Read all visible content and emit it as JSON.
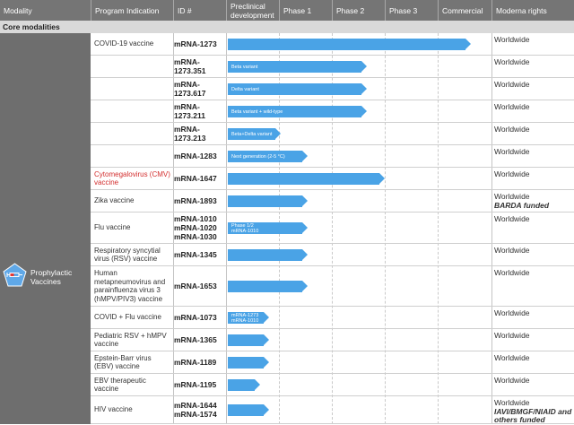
{
  "header": {
    "modality": "Modality",
    "program": "Program Indication",
    "id": "ID #",
    "preclinical": "Preclinical development",
    "phase1": "Phase 1",
    "phase2": "Phase 2",
    "phase3": "Phase 3",
    "commercial": "Commercial",
    "rights": "Moderna rights"
  },
  "band": "Core modalities",
  "modality": {
    "label": "Prophylactic Vaccines",
    "icon": "syringe-shield-icon"
  },
  "colors": {
    "header_bg": "#757575",
    "band_bg": "#d9d9d9",
    "modality_bg": "#6e6e6e",
    "bar": "#4aa3e6",
    "highlight_text": "#d32f2f"
  },
  "rows": [
    {
      "program": "COVID-19 vaccine",
      "ids": [
        "mRNA-1273"
      ],
      "bar_label": [],
      "rights": "Worldwide",
      "rights_note": "",
      "stage_progress": 0.82
    },
    {
      "program": "",
      "ids": [
        "mRNA-",
        "1273.351"
      ],
      "bar_label": [
        "Beta variant"
      ],
      "rights": "Worldwide",
      "rights_note": "",
      "stage_progress": 0.47
    },
    {
      "program": "",
      "ids": [
        "mRNA-",
        "1273.617"
      ],
      "bar_label": [
        "Delta variant"
      ],
      "rights": "Worldwide",
      "rights_note": "",
      "stage_progress": 0.47
    },
    {
      "program": "",
      "ids": [
        "mRNA-",
        "1273.211"
      ],
      "bar_label": [
        "Beta variant + wild-type"
      ],
      "rights": "Worldwide",
      "rights_note": "",
      "stage_progress": 0.47
    },
    {
      "program": "",
      "ids": [
        "mRNA-",
        "1273.213"
      ],
      "bar_label": [
        "Beta+Delta variant"
      ],
      "rights": "Worldwide",
      "rights_note": "",
      "stage_progress": 0.18
    },
    {
      "program": "",
      "ids": [
        "mRNA-1283"
      ],
      "bar_label": [
        "Next generation (2-5 °C)"
      ],
      "rights": "Worldwide",
      "rights_note": "",
      "stage_progress": 0.27
    },
    {
      "program": "Cytomegalovirus (CMV) vaccine",
      "program_red": true,
      "ids": [
        "mRNA-1647"
      ],
      "bar_label": [],
      "rights": "Worldwide",
      "rights_note": "",
      "stage_progress": 0.53
    },
    {
      "program": "Zika vaccine",
      "ids": [
        "mRNA-1893"
      ],
      "bar_label": [],
      "rights": "Worldwide",
      "rights_note": "BARDA funded",
      "stage_progress": 0.27
    },
    {
      "program": "Flu vaccine",
      "ids": [
        "mRNA-1010",
        "mRNA-1020",
        "mRNA-1030"
      ],
      "bar_label": [
        "Phase 1/2",
        "mRNA-1010"
      ],
      "rights": "Worldwide",
      "rights_note": "",
      "stage_progress": 0.27
    },
    {
      "program": "Respiratory syncytial virus (RSV) vaccine",
      "ids": [
        "mRNA-1345"
      ],
      "bar_label": [],
      "rights": "Worldwide",
      "rights_note": "",
      "stage_progress": 0.27
    },
    {
      "program": "Human metapneumovirus and parainfluenza virus 3 (hMPV/PIV3) vaccine",
      "ids": [
        "mRNA-1653"
      ],
      "bar_label": [],
      "rights": "Worldwide",
      "rights_note": "",
      "stage_progress": 0.27
    },
    {
      "program": "COVID + Flu vaccine",
      "ids": [
        "mRNA-1073"
      ],
      "bar_label": [
        "mRNA-1273",
        "mRNA-1010"
      ],
      "rights": "Worldwide",
      "rights_note": "",
      "stage_progress": 0.14
    },
    {
      "program": "Pediatric RSV + hMPV vaccine",
      "ids": [
        "mRNA-1365"
      ],
      "bar_label": [],
      "rights": "Worldwide",
      "rights_note": "",
      "stage_progress": 0.14
    },
    {
      "program": "Epstein-Barr virus (EBV) vaccine",
      "ids": [
        "mRNA-1189"
      ],
      "bar_label": [],
      "rights": "Worldwide",
      "rights_note": "",
      "stage_progress": 0.14
    },
    {
      "program": "EBV therapeutic vaccine",
      "ids": [
        "mRNA-1195"
      ],
      "bar_label": [],
      "rights": "Worldwide",
      "rights_note": "",
      "stage_progress": 0.11
    },
    {
      "program": "HIV vaccine",
      "ids": [
        "mRNA-1644",
        "mRNA-1574"
      ],
      "bar_label": [],
      "rights": "Worldwide",
      "rights_note": "IAVI/BMGF/NIAID and others funded",
      "stage_progress": 0.14
    }
  ]
}
